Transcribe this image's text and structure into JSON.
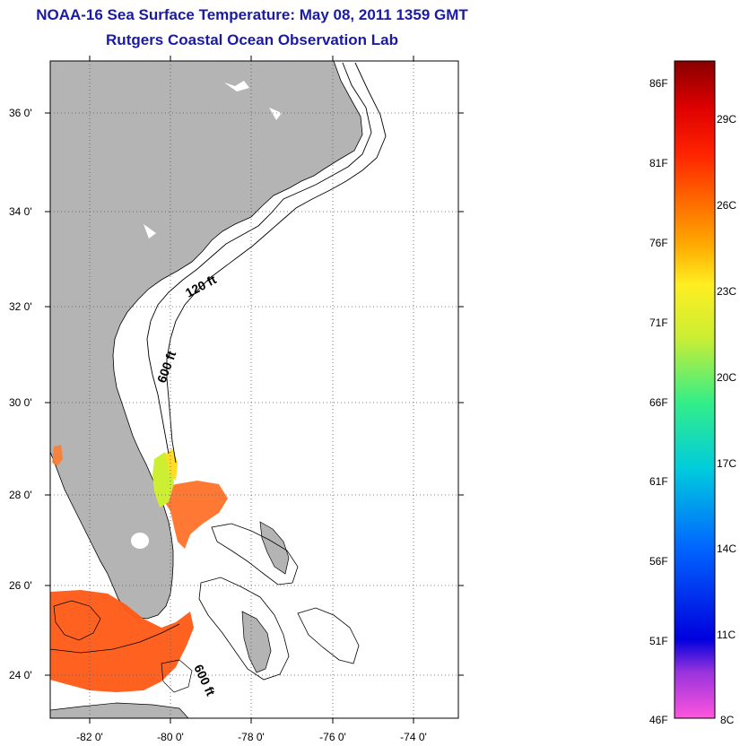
{
  "header": {
    "title": "NOAA-16 Sea Surface Temperature:  May 08, 2011 1359 GMT",
    "subtitle": "Rutgers Coastal Ocean Observation Lab"
  },
  "map": {
    "lat_ticks": [
      "24 0'",
      "26 0'",
      "28 0'",
      "30 0'",
      "32 0'",
      "34 0'",
      "36 0'"
    ],
    "lon_ticks": [
      "-82 0'",
      "-80 0'",
      "-78 0'",
      "-76 0'",
      "-74 0'"
    ],
    "contour_labels": {
      "shallow": "120 ft",
      "deep": "600 ft",
      "deep_south": "600 ft"
    },
    "land_color": "#b4b4b4"
  },
  "colorbar": {
    "fahrenheit": [
      "86F",
      "81F",
      "76F",
      "71F",
      "66F",
      "61F",
      "56F",
      "51F",
      "46F"
    ],
    "celsius": [
      "29C",
      "26C",
      "23C",
      "20C",
      "17C",
      "14C",
      "11C",
      "8C"
    ],
    "colors": [
      "#ff55dd",
      "#9933dd",
      "#0000dd",
      "#0066ff",
      "#00ccdd",
      "#33ee88",
      "#ccee33",
      "#ffee22",
      "#ffaa00",
      "#ff6600",
      "#ff2200",
      "#dd0000",
      "#880000"
    ]
  }
}
